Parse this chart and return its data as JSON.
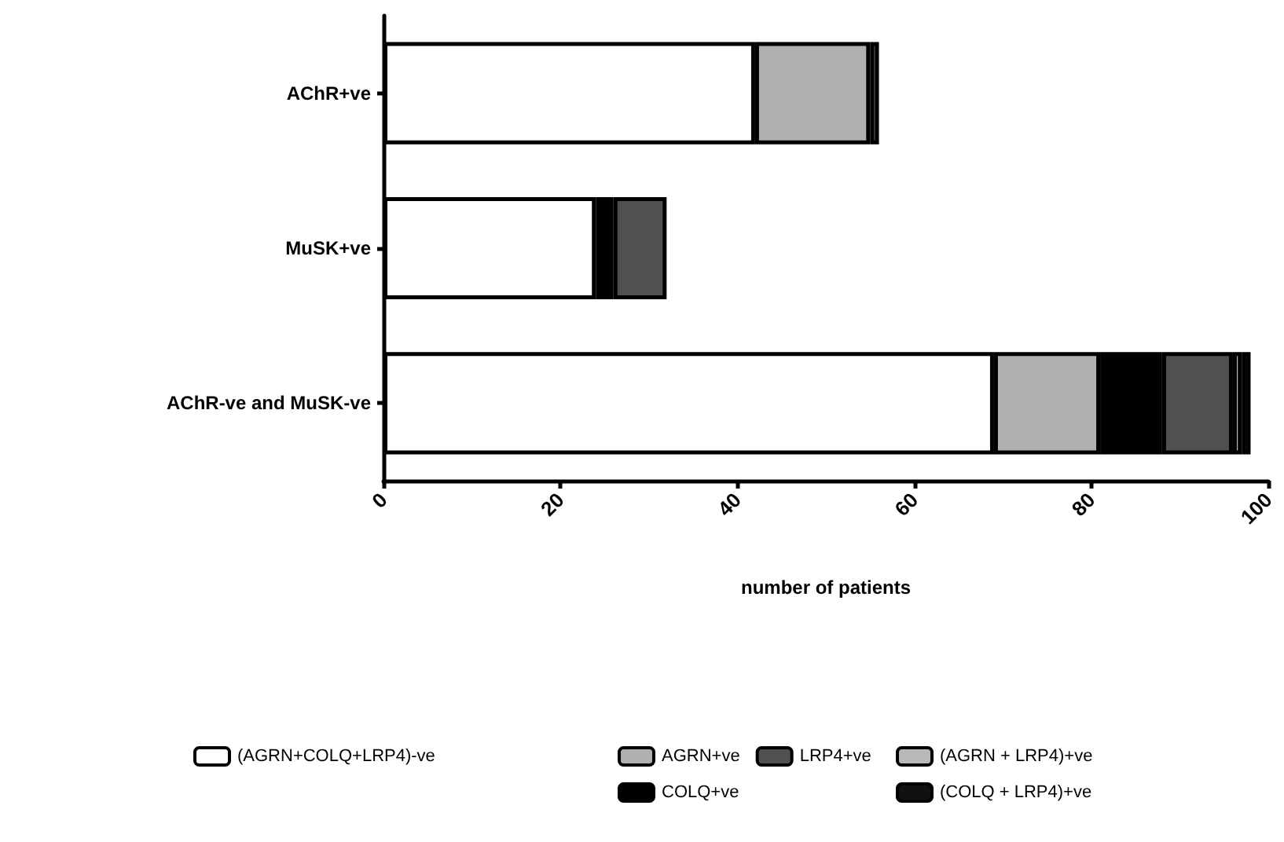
{
  "chart_data": {
    "type": "bar",
    "orientation": "horizontal",
    "stacked": true,
    "xlabel": "number of patients",
    "categories": [
      "AChR+ve",
      "MuSK+ve",
      "AChR-ve and MuSK-ve"
    ],
    "series": [
      {
        "name": "(AGRN+COLQ+LRP4)-ve",
        "color": "#ffffff",
        "values": [
          42,
          24,
          69
        ]
      },
      {
        "name": "AGRN+ve",
        "color": "#b0b0b0",
        "values": [
          13,
          0,
          12
        ]
      },
      {
        "name": "COLQ+ve",
        "color": "#000000",
        "values": [
          0,
          2,
          7
        ]
      },
      {
        "name": "LRP4+ve",
        "color": "#505050",
        "values": [
          1,
          6,
          8
        ]
      },
      {
        "name": "(AGRN + LRP4)+ve",
        "color": "#b8b8b8",
        "values": [
          0,
          0,
          1
        ]
      },
      {
        "name": "(COLQ + LRP4)+ve",
        "color": "#111111",
        "values": [
          0,
          0,
          1
        ]
      }
    ],
    "xlim": [
      0,
      100
    ],
    "xticks": [
      0,
      20,
      40,
      60,
      80,
      100
    ],
    "grid": false,
    "legend": "bottom"
  }
}
